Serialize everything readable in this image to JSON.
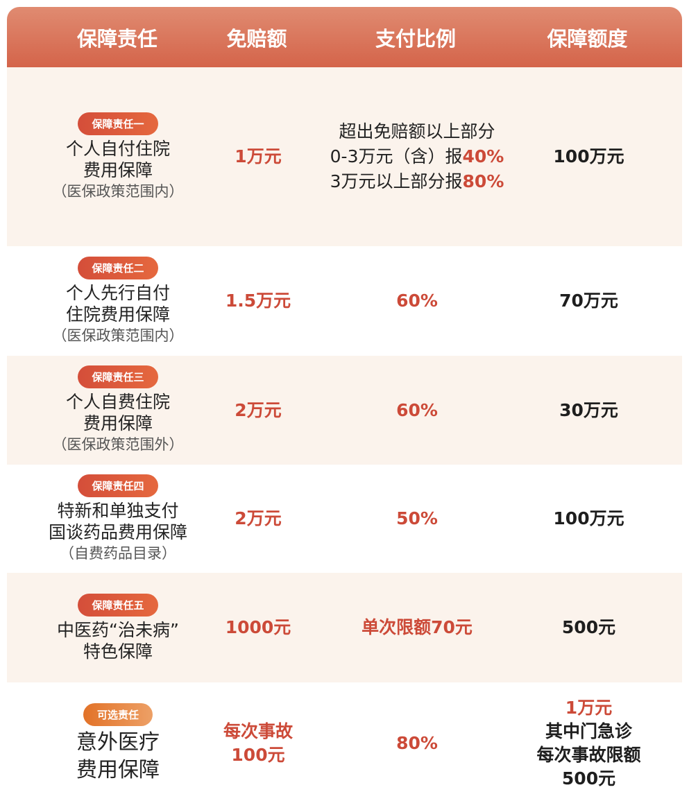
{
  "header": [
    "保障责任",
    "免赔额",
    "支付比例",
    "保障额度"
  ],
  "colors": {
    "header_gradient": [
      "#e08b71",
      "#d4644a"
    ],
    "highlight": "#cc4a38",
    "row_cream": "#fbf3ec",
    "badge": "#d44e3a",
    "badge_optional": "#e27228"
  },
  "rows": [
    {
      "badge": "保障责任一",
      "optional": false,
      "title": [
        "个人自付住院",
        "费用保障"
      ],
      "note": "（医保政策范围内）",
      "deductible": [
        [
          {
            "t": "1万元",
            "hl": true
          }
        ]
      ],
      "ratio": [
        [
          {
            "t": "超出免赔额以上部分",
            "hl": false
          }
        ],
        [
          {
            "t": "0-3万元（含）报",
            "hl": false
          },
          {
            "t": "40%",
            "hl": true
          }
        ],
        [
          {
            "t": "3万元以上部分报",
            "hl": false
          },
          {
            "t": "80%",
            "hl": true
          }
        ]
      ],
      "limit": [
        [
          {
            "t": "100万元",
            "hl": false
          }
        ]
      ]
    },
    {
      "badge": "保障责任二",
      "optional": false,
      "title": [
        "个人先行自付",
        "住院费用保障"
      ],
      "note": "（医保政策范围内）",
      "deductible": [
        [
          {
            "t": "1.5万元",
            "hl": true
          }
        ]
      ],
      "ratio": [
        [
          {
            "t": "60%",
            "hl": true
          }
        ]
      ],
      "limit": [
        [
          {
            "t": "70万元",
            "hl": false
          }
        ]
      ]
    },
    {
      "badge": "保障责任三",
      "optional": false,
      "title": [
        "个人自费住院",
        "费用保障"
      ],
      "note": "（医保政策范围外）",
      "deductible": [
        [
          {
            "t": "2万元",
            "hl": true
          }
        ]
      ],
      "ratio": [
        [
          {
            "t": "60%",
            "hl": true
          }
        ]
      ],
      "limit": [
        [
          {
            "t": "30万元",
            "hl": false
          }
        ]
      ]
    },
    {
      "badge": "保障责任四",
      "optional": false,
      "title": [
        "特新和单独支付",
        "国谈药品费用保障"
      ],
      "note": "（自费药品目录）",
      "deductible": [
        [
          {
            "t": "2万元",
            "hl": true
          }
        ]
      ],
      "ratio": [
        [
          {
            "t": "50%",
            "hl": true
          }
        ]
      ],
      "limit": [
        [
          {
            "t": "100万元",
            "hl": false
          }
        ]
      ]
    },
    {
      "badge": "保障责任五",
      "optional": false,
      "title": [
        "中医药“治未病”",
        "特色保障"
      ],
      "note": "",
      "deductible": [
        [
          {
            "t": "1000元",
            "hl": true
          }
        ]
      ],
      "ratio": [
        [
          {
            "t": "单次限额70元",
            "hl": true
          }
        ]
      ],
      "limit": [
        [
          {
            "t": "500元",
            "hl": false
          }
        ]
      ]
    },
    {
      "badge": "可选责任",
      "optional": true,
      "title": [
        "意外医疗",
        "费用保障"
      ],
      "note": "",
      "deductible": [
        [
          {
            "t": "每次事故",
            "hl": true
          }
        ],
        [
          {
            "t": "100元",
            "hl": true
          }
        ]
      ],
      "ratio": [
        [
          {
            "t": "80%",
            "hl": true
          }
        ]
      ],
      "limit": [
        [
          {
            "t": "1万元",
            "hl": true
          }
        ],
        [
          {
            "t": "其中门急诊",
            "hl": false
          }
        ],
        [
          {
            "t": "每次事故限额",
            "hl": false
          }
        ],
        [
          {
            "t": "500元",
            "hl": false
          }
        ]
      ]
    }
  ]
}
